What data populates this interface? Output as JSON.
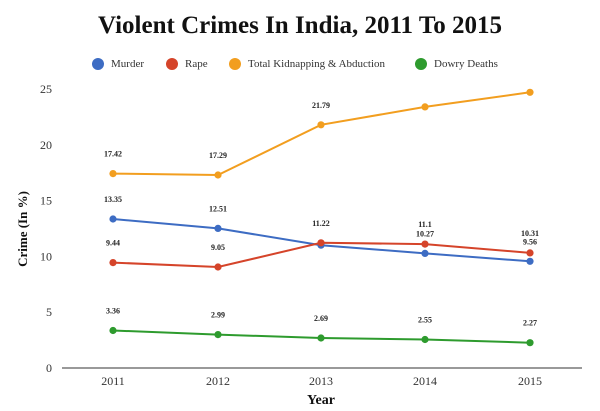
{
  "chart_data": {
    "type": "line",
    "title": "Violent Crimes In India,  2011 To 2015",
    "xlabel": "Year",
    "ylabel": "Crime (In %)",
    "ylim": [
      0,
      25
    ],
    "yticks": [
      0,
      5,
      10,
      15,
      20,
      25
    ],
    "grid": false,
    "legend_position": "top",
    "categories": [
      "2011",
      "2012",
      "2013",
      "2014",
      "2015"
    ],
    "series": [
      {
        "name": "Murder",
        "color": "#3d6cc3",
        "values": [
          13.35,
          12.51,
          11.0,
          10.27,
          9.56
        ],
        "labels": [
          "13.35",
          "12.51",
          null,
          "10.27",
          "9.56"
        ]
      },
      {
        "name": "Rape",
        "color": "#d5442a",
        "values": [
          9.44,
          9.05,
          11.22,
          11.1,
          10.31
        ],
        "labels": [
          "9.44",
          "9.05",
          "11.22",
          "11.1",
          "10.31"
        ]
      },
      {
        "name": "Total Kidnapping & Abduction",
        "color": "#f29e1f",
        "values": [
          17.42,
          17.29,
          21.79,
          23.4,
          24.7
        ],
        "labels": [
          "17.42",
          "17.29",
          "21.79",
          null,
          null
        ]
      },
      {
        "name": "Dowry Deaths",
        "color": "#2e9b2e",
        "values": [
          3.36,
          2.99,
          2.69,
          2.55,
          2.27
        ],
        "labels": [
          "3.36",
          "2.99",
          "2.69",
          "2.55",
          "2.27"
        ]
      }
    ]
  }
}
